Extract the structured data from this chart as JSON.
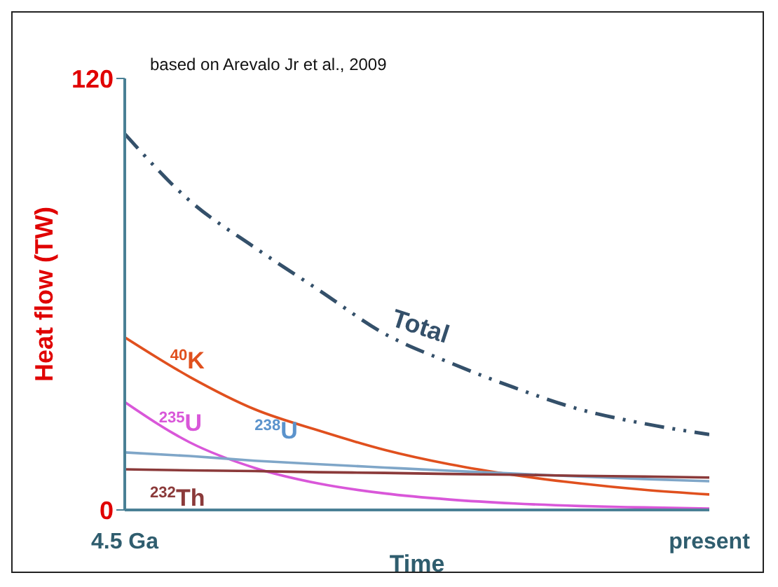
{
  "chart_data": {
    "type": "line",
    "xlabel": "Time",
    "ylabel": "Heat flow (TW)",
    "annotations": [
      "based on Arevalo Jr et al., 2009"
    ],
    "categories": [
      "4.5 Ga",
      null,
      null,
      null,
      null,
      null,
      null,
      null,
      null,
      "present"
    ],
    "ylim": [
      0,
      120
    ],
    "yticks": [
      0,
      120
    ],
    "marker": "none",
    "series": [
      {
        "name": "Total",
        "color": "#34506a",
        "line_style": "dashed",
        "values": [
          104.6,
          86,
          73,
          61,
          49,
          41,
          34,
          28,
          24,
          21
        ]
      },
      {
        "name": "$^{40}$K",
        "color": "#e0501e",
        "values": [
          48,
          37,
          28,
          22,
          16.7,
          12.7,
          9.7,
          7.4,
          5.6,
          4.3
        ]
      },
      {
        "name": "$^{235}$U",
        "color": "#d957d9",
        "values": [
          30,
          18.8,
          11.7,
          7.3,
          4.6,
          2.9,
          1.8,
          1.1,
          0.7,
          0.4
        ]
      },
      {
        "name": "$^{238}$U",
        "color": "#7fa6c8",
        "values": [
          16,
          15,
          13.7,
          12.7,
          11.8,
          10.9,
          10.1,
          9.3,
          8.6,
          8
        ]
      },
      {
        "name": "$^{232}$Th",
        "color": "#8b3a3a",
        "values": [
          11.3,
          11,
          10.8,
          10.5,
          10.3,
          10,
          9.8,
          9.5,
          9.3,
          9
        ]
      }
    ]
  }
}
